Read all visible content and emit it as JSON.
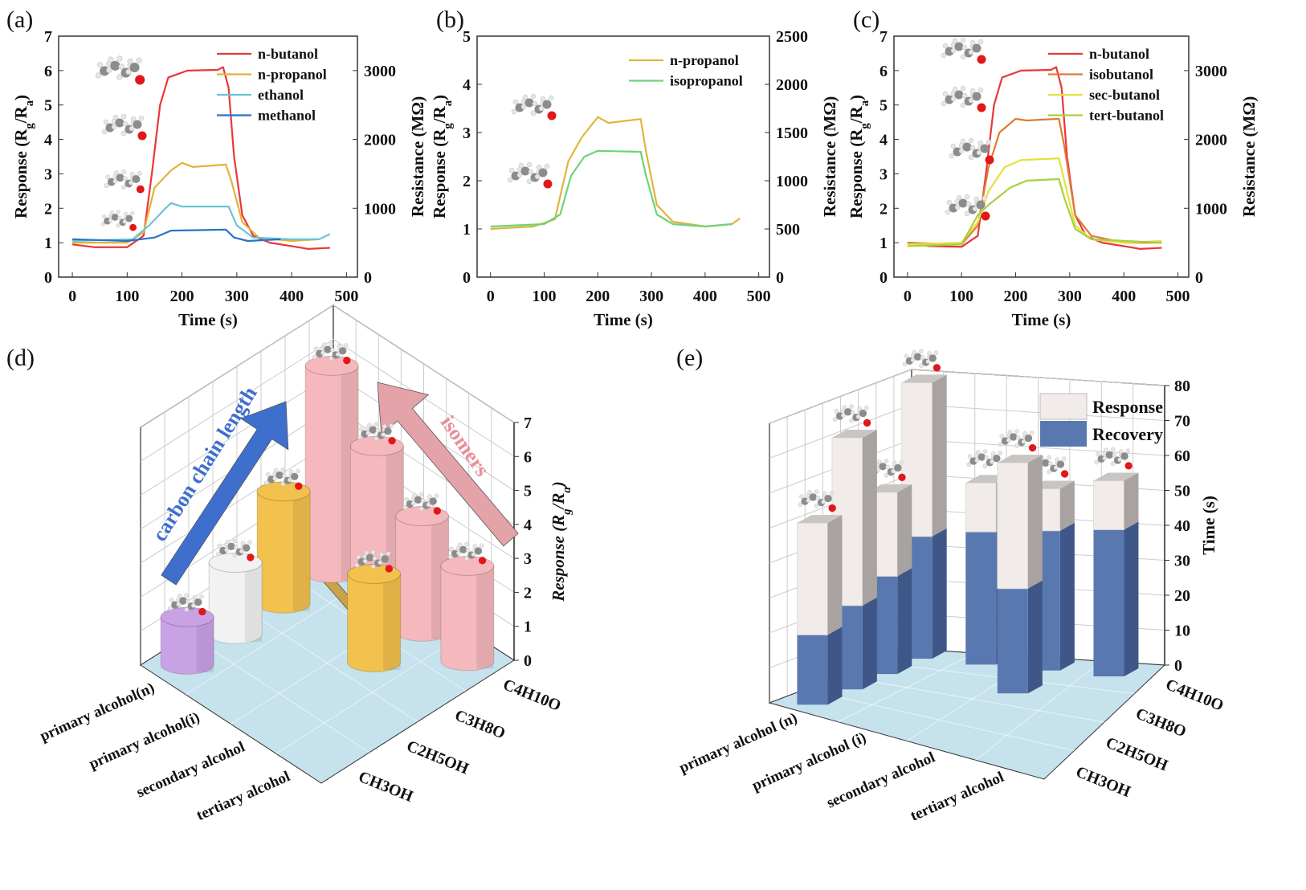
{
  "panels": {
    "a": {
      "label": "(a)"
    },
    "b": {
      "label": "(b)"
    },
    "c": {
      "label": "(c)"
    },
    "d": {
      "label": "(d)"
    },
    "e": {
      "label": "(e)"
    }
  },
  "colors": {
    "n-butanol": "#e8373a",
    "n-propanol": "#e0b43c",
    "ethanol": "#6cc4d6",
    "methanol": "#2a72c8",
    "isopropanol": "#6ed37a",
    "isobutanol": "#e07a35",
    "sec-butanol": "#e6e040",
    "tert-butanol": "#a8d040",
    "floor": "#c6e2ec",
    "response_bar": "#f1ece9",
    "recovery_bar": "#5a78b0"
  },
  "chart_data": [
    {
      "id": "a",
      "type": "line",
      "xlabel": "Time (s)",
      "ylabel": "Response (Rg/Ra)",
      "y2label": "Resistance (MΩ)",
      "xlim": [
        -25,
        520
      ],
      "ylim": [
        0,
        7
      ],
      "y2lim": [
        0,
        3500
      ],
      "xticks": [
        0,
        100,
        200,
        300,
        400,
        500
      ],
      "yticks": [
        0,
        1,
        2,
        3,
        4,
        5,
        6,
        7
      ],
      "y2ticks": [
        0,
        1000,
        2000,
        3000
      ],
      "legend": "top-right",
      "series": [
        {
          "name": "n-butanol",
          "points": [
            [
              0,
              0.95
            ],
            [
              40,
              0.87
            ],
            [
              100,
              0.87
            ],
            [
              130,
              1.2
            ],
            [
              145,
              3
            ],
            [
              160,
              5
            ],
            [
              175,
              5.8
            ],
            [
              210,
              6.0
            ],
            [
              265,
              6.02
            ],
            [
              275,
              6.1
            ],
            [
              285,
              5.5
            ],
            [
              295,
              3.5
            ],
            [
              310,
              1.8
            ],
            [
              330,
              1.2
            ],
            [
              360,
              1.0
            ],
            [
              400,
              0.9
            ],
            [
              430,
              0.82
            ],
            [
              470,
              0.85
            ]
          ]
        },
        {
          "name": "n-propanol",
          "points": [
            [
              0,
              1.0
            ],
            [
              100,
              1.0
            ],
            [
              130,
              1.3
            ],
            [
              150,
              2.6
            ],
            [
              180,
              3.1
            ],
            [
              200,
              3.32
            ],
            [
              220,
              3.2
            ],
            [
              280,
              3.27
            ],
            [
              290,
              2.8
            ],
            [
              310,
              1.6
            ],
            [
              340,
              1.15
            ],
            [
              400,
              1.05
            ],
            [
              450,
              1.1
            ]
          ]
        },
        {
          "name": "ethanol",
          "points": [
            [
              0,
              1.05
            ],
            [
              110,
              1.1
            ],
            [
              140,
              1.5
            ],
            [
              170,
              2.0
            ],
            [
              180,
              2.15
            ],
            [
              200,
              2.05
            ],
            [
              285,
              2.05
            ],
            [
              300,
              1.5
            ],
            [
              330,
              1.15
            ],
            [
              400,
              1.1
            ],
            [
              450,
              1.1
            ],
            [
              470,
              1.25
            ]
          ]
        },
        {
          "name": "methanol",
          "points": [
            [
              0,
              1.1
            ],
            [
              100,
              1.05
            ],
            [
              150,
              1.15
            ],
            [
              180,
              1.35
            ],
            [
              280,
              1.38
            ],
            [
              295,
              1.15
            ],
            [
              320,
              1.05
            ],
            [
              380,
              1.1
            ]
          ]
        }
      ]
    },
    {
      "id": "b",
      "type": "line",
      "xlabel": "Time (s)",
      "ylabel": "Response (Rg/Ra)",
      "y2label": "Resistance (MΩ)",
      "xlim": [
        -25,
        520
      ],
      "ylim": [
        0,
        5
      ],
      "y2lim": [
        0,
        2500
      ],
      "xticks": [
        0,
        100,
        200,
        300,
        400,
        500
      ],
      "yticks": [
        0,
        1,
        2,
        3,
        4,
        5
      ],
      "y2ticks": [
        0,
        500,
        1000,
        1500,
        2000,
        2500
      ],
      "legend": "top-right",
      "series": [
        {
          "name": "n-propanol",
          "points": [
            [
              0,
              1.0
            ],
            [
              80,
              1.05
            ],
            [
              120,
              1.2
            ],
            [
              145,
              2.4
            ],
            [
              170,
              2.9
            ],
            [
              200,
              3.32
            ],
            [
              220,
              3.2
            ],
            [
              280,
              3.28
            ],
            [
              290,
              2.6
            ],
            [
              310,
              1.5
            ],
            [
              340,
              1.15
            ],
            [
              400,
              1.05
            ],
            [
              450,
              1.1
            ],
            [
              465,
              1.22
            ]
          ]
        },
        {
          "name": "isopropanol",
          "points": [
            [
              0,
              1.05
            ],
            [
              100,
              1.1
            ],
            [
              130,
              1.3
            ],
            [
              150,
              2.1
            ],
            [
              175,
              2.5
            ],
            [
              200,
              2.62
            ],
            [
              280,
              2.6
            ],
            [
              290,
              2.1
            ],
            [
              310,
              1.3
            ],
            [
              340,
              1.1
            ],
            [
              400,
              1.05
            ],
            [
              450,
              1.1
            ]
          ]
        }
      ]
    },
    {
      "id": "c",
      "type": "line",
      "xlabel": "Time (s)",
      "ylabel": "Response (Rg/Ra)",
      "y2label": "Resistance (MΩ)",
      "xlim": [
        -25,
        520
      ],
      "ylim": [
        0,
        7
      ],
      "y2lim": [
        0,
        3500
      ],
      "xticks": [
        0,
        100,
        200,
        300,
        400,
        500
      ],
      "yticks": [
        0,
        1,
        2,
        3,
        4,
        5,
        6,
        7
      ],
      "y2ticks": [
        0,
        1000,
        2000,
        3000
      ],
      "legend": "top-right",
      "series": [
        {
          "name": "n-butanol",
          "points": [
            [
              0,
              1.0
            ],
            [
              40,
              0.9
            ],
            [
              100,
              0.88
            ],
            [
              130,
              1.2
            ],
            [
              145,
              3
            ],
            [
              160,
              5
            ],
            [
              175,
              5.8
            ],
            [
              210,
              6.0
            ],
            [
              265,
              6.02
            ],
            [
              275,
              6.1
            ],
            [
              285,
              5.5
            ],
            [
              295,
              3.5
            ],
            [
              310,
              1.8
            ],
            [
              330,
              1.2
            ],
            [
              360,
              1.0
            ],
            [
              400,
              0.9
            ],
            [
              430,
              0.82
            ],
            [
              470,
              0.85
            ]
          ]
        },
        {
          "name": "isobutanol",
          "points": [
            [
              0,
              1.0
            ],
            [
              100,
              0.95
            ],
            [
              130,
              1.5
            ],
            [
              150,
              3.2
            ],
            [
              170,
              4.2
            ],
            [
              200,
              4.6
            ],
            [
              220,
              4.55
            ],
            [
              280,
              4.6
            ],
            [
              290,
              3.8
            ],
            [
              310,
              1.8
            ],
            [
              340,
              1.2
            ],
            [
              400,
              1.0
            ],
            [
              470,
              1.0
            ]
          ]
        },
        {
          "name": "sec-butanol",
          "points": [
            [
              0,
              0.95
            ],
            [
              100,
              1.0
            ],
            [
              130,
              1.6
            ],
            [
              150,
              2.5
            ],
            [
              180,
              3.2
            ],
            [
              210,
              3.4
            ],
            [
              280,
              3.45
            ],
            [
              290,
              2.8
            ],
            [
              310,
              1.5
            ],
            [
              340,
              1.1
            ],
            [
              400,
              1.0
            ],
            [
              470,
              1.05
            ]
          ]
        },
        {
          "name": "tert-butanol",
          "points": [
            [
              0,
              0.9
            ],
            [
              100,
              0.95
            ],
            [
              130,
              1.8
            ],
            [
              150,
              2.1
            ],
            [
              190,
              2.6
            ],
            [
              220,
              2.8
            ],
            [
              280,
              2.85
            ],
            [
              290,
              2.3
            ],
            [
              310,
              1.4
            ],
            [
              340,
              1.1
            ],
            [
              470,
              1.0
            ]
          ]
        }
      ]
    },
    {
      "id": "d",
      "type": "bar3d",
      "zlabel": "Response (Rg/Ra)",
      "zlim": [
        0,
        7
      ],
      "zticks": [
        0,
        1,
        2,
        3,
        4,
        5,
        6,
        7
      ],
      "rows": [
        "primary alcohol(n)",
        "primary alcohol(i)",
        "secondary alcohol",
        "tertiary alcohol"
      ],
      "columns": [
        "CH3OH",
        "C2H5OH",
        "C3H8O",
        "C4H10O"
      ],
      "annotations": [
        "carbon chain length",
        "isomers"
      ],
      "bars": [
        {
          "row": 0,
          "col": 0,
          "value": 1.4,
          "color": "#c9a2e6"
        },
        {
          "row": 0,
          "col": 1,
          "value": 2.1,
          "color": "#f2f2f2"
        },
        {
          "row": 0,
          "col": 2,
          "value": 3.3,
          "color": "#f2c14e"
        },
        {
          "row": 0,
          "col": 3,
          "value": 6.1,
          "color": "#f5b8bc"
        },
        {
          "row": 1,
          "col": 3,
          "value": 4.6,
          "color": "#f5b8bc"
        },
        {
          "row": 2,
          "col": 2,
          "value": 2.6,
          "color": "#f2c14e"
        },
        {
          "row": 2,
          "col": 3,
          "value": 3.4,
          "color": "#f5b8bc"
        },
        {
          "row": 3,
          "col": 3,
          "value": 2.8,
          "color": "#f5b8bc"
        }
      ]
    },
    {
      "id": "e",
      "type": "bar3d-stacked",
      "zlabel": "Time (s)",
      "zlim": [
        0,
        80
      ],
      "zticks": [
        0,
        10,
        20,
        30,
        40,
        50,
        60,
        70,
        80
      ],
      "rows": [
        "primary alcohol (n)",
        "primary alcohol (i)",
        "secondary alcohol",
        "tertiary alcohol"
      ],
      "columns": [
        "CH3OH",
        "C2H5OH",
        "C3H8O",
        "C4H10O"
      ],
      "legend": "top-right",
      "series_names": [
        "Response",
        "Recovery"
      ],
      "bars": [
        {
          "row": 0,
          "col": 0,
          "recovery": 20,
          "response": 32
        },
        {
          "row": 0,
          "col": 1,
          "recovery": 24,
          "response": 48
        },
        {
          "row": 0,
          "col": 2,
          "recovery": 28,
          "response": 24
        },
        {
          "row": 0,
          "col": 3,
          "recovery": 35,
          "response": 44
        },
        {
          "row": 1,
          "col": 3,
          "recovery": 38,
          "response": 14
        },
        {
          "row": 2,
          "col": 2,
          "recovery": 30,
          "response": 36
        },
        {
          "row": 2,
          "col": 3,
          "recovery": 40,
          "response": 12
        },
        {
          "row": 3,
          "col": 3,
          "recovery": 42,
          "response": 14
        }
      ]
    }
  ]
}
